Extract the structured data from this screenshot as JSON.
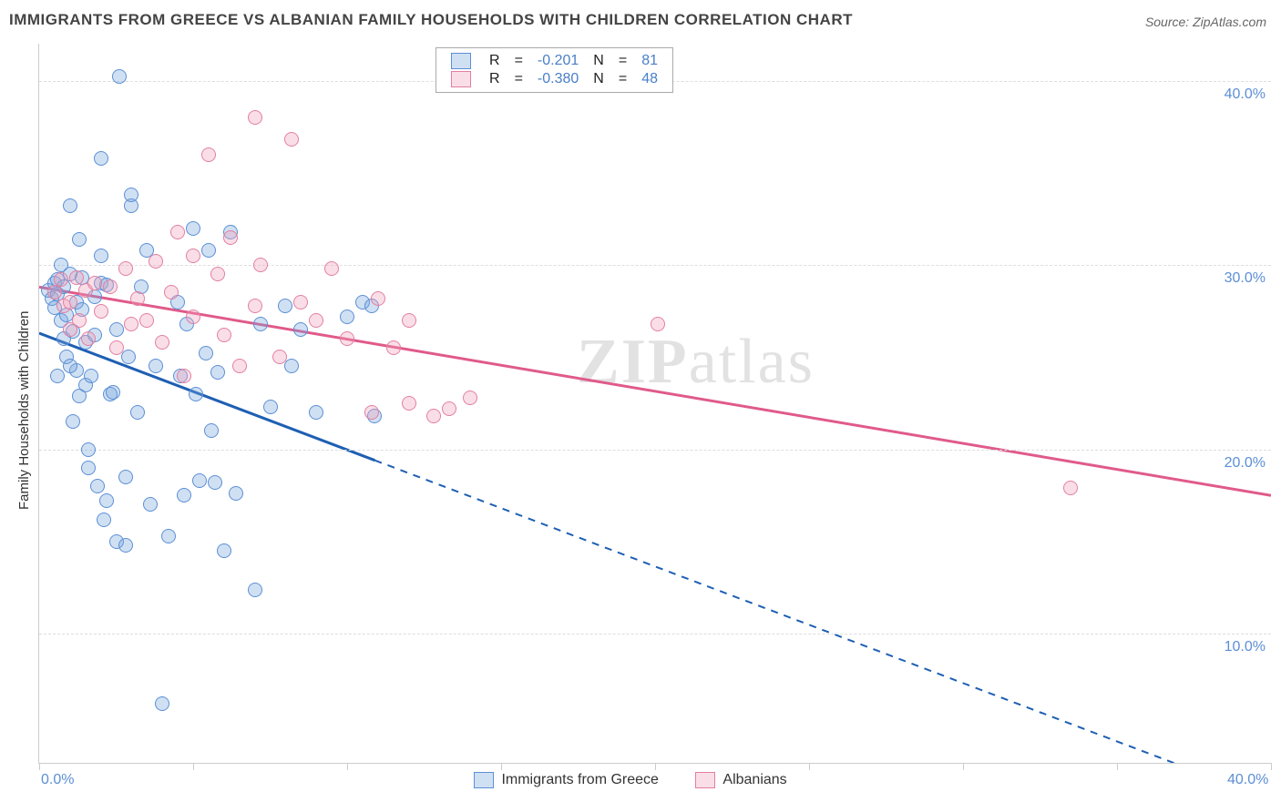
{
  "title": "IMMIGRANTS FROM GREECE VS ALBANIAN FAMILY HOUSEHOLDS WITH CHILDREN CORRELATION CHART",
  "source_prefix": "Source: ",
  "source_name": "ZipAtlas.com",
  "ylabel": "Family Households with Children",
  "watermark_a": "ZIP",
  "watermark_b": "atlas",
  "chart": {
    "type": "scatter",
    "background_color": "#ffffff",
    "grid_color": "#dddddd",
    "axis_color": "#cccccc",
    "tick_label_color": "#5b8fd6",
    "xlim": [
      0,
      40
    ],
    "ylim": [
      3,
      42
    ],
    "x_ticks": [
      0,
      5,
      10,
      15,
      20,
      25,
      30,
      35,
      40
    ],
    "y_gridlines": [
      10,
      20,
      30,
      40
    ],
    "x_tick_labels": {
      "0": "0.0%",
      "40": "40.0%"
    },
    "y_tick_labels": {
      "10": "10.0%",
      "20": "20.0%",
      "30": "30.0%",
      "40": "40.0%"
    },
    "marker_radius": 8,
    "marker_border_width": 1.5,
    "series": [
      {
        "key": "greece",
        "label": "Immigrants from Greece",
        "fill_color": "rgba(120,165,220,0.35)",
        "border_color": "#5b8fd6",
        "trend_color": "#1e5fb3",
        "trend": {
          "y_at_x0": 26.3,
          "y_at_xmax": 1.0,
          "solid_until_x": 10.9
        },
        "R": "-0.201",
        "N": "81",
        "points": [
          [
            0.3,
            28.6
          ],
          [
            0.4,
            28.2
          ],
          [
            0.5,
            29.0
          ],
          [
            0.5,
            27.7
          ],
          [
            0.6,
            28.4
          ],
          [
            0.6,
            29.2
          ],
          [
            0.7,
            27.0
          ],
          [
            0.7,
            30.0
          ],
          [
            0.8,
            26.0
          ],
          [
            0.8,
            28.8
          ],
          [
            0.9,
            27.3
          ],
          [
            0.9,
            25.0
          ],
          [
            1.0,
            29.5
          ],
          [
            1.0,
            33.2
          ],
          [
            1.1,
            26.4
          ],
          [
            1.2,
            24.3
          ],
          [
            1.2,
            28.0
          ],
          [
            1.3,
            31.4
          ],
          [
            1.3,
            22.9
          ],
          [
            1.4,
            27.6
          ],
          [
            1.5,
            23.5
          ],
          [
            1.5,
            25.8
          ],
          [
            1.6,
            20.0
          ],
          [
            1.6,
            19.0
          ],
          [
            1.7,
            24.0
          ],
          [
            1.8,
            28.3
          ],
          [
            1.8,
            26.2
          ],
          [
            1.9,
            18.0
          ],
          [
            2.0,
            35.8
          ],
          [
            2.0,
            30.5
          ],
          [
            2.1,
            16.2
          ],
          [
            2.2,
            17.2
          ],
          [
            2.3,
            23.0
          ],
          [
            2.4,
            23.1
          ],
          [
            2.5,
            26.5
          ],
          [
            2.5,
            15.0
          ],
          [
            2.6,
            40.2
          ],
          [
            2.8,
            14.8
          ],
          [
            2.8,
            18.5
          ],
          [
            2.9,
            25.0
          ],
          [
            3.0,
            33.2
          ],
          [
            3.0,
            33.8
          ],
          [
            3.2,
            22.0
          ],
          [
            3.5,
            30.8
          ],
          [
            3.6,
            17.0
          ],
          [
            3.8,
            24.5
          ],
          [
            4.0,
            6.2
          ],
          [
            4.2,
            15.3
          ],
          [
            4.5,
            28.0
          ],
          [
            4.6,
            24.0
          ],
          [
            4.7,
            17.5
          ],
          [
            4.8,
            26.8
          ],
          [
            5.0,
            32.0
          ],
          [
            5.1,
            23.0
          ],
          [
            5.2,
            18.3
          ],
          [
            5.4,
            25.2
          ],
          [
            5.5,
            30.8
          ],
          [
            5.6,
            21.0
          ],
          [
            5.7,
            18.2
          ],
          [
            5.8,
            24.2
          ],
          [
            6.0,
            14.5
          ],
          [
            6.2,
            31.8
          ],
          [
            6.4,
            17.6
          ],
          [
            7.0,
            12.4
          ],
          [
            7.2,
            26.8
          ],
          [
            7.5,
            22.3
          ],
          [
            8.0,
            27.8
          ],
          [
            8.2,
            24.5
          ],
          [
            8.5,
            26.5
          ],
          [
            9.0,
            22.0
          ],
          [
            10.0,
            27.2
          ],
          [
            10.5,
            28.0
          ],
          [
            10.8,
            27.8
          ],
          [
            10.9,
            21.8
          ],
          [
            2.0,
            29.0
          ],
          [
            1.0,
            24.5
          ],
          [
            1.4,
            29.3
          ],
          [
            1.1,
            21.5
          ],
          [
            2.2,
            28.9
          ],
          [
            0.6,
            24.0
          ],
          [
            3.3,
            28.8
          ]
        ]
      },
      {
        "key": "albanians",
        "label": "Albanians",
        "fill_color": "rgba(240,160,185,0.35)",
        "border_color": "#e37fa0",
        "trend_color": "#e05a8a",
        "trend": {
          "y_at_x0": 28.8,
          "y_at_xmax": 17.5,
          "solid_until_x": 40
        },
        "R": "-0.380",
        "N": "48",
        "points": [
          [
            0.5,
            28.5
          ],
          [
            0.7,
            29.2
          ],
          [
            0.8,
            27.8
          ],
          [
            1.0,
            28.0
          ],
          [
            1.0,
            26.5
          ],
          [
            1.2,
            29.3
          ],
          [
            1.3,
            27.0
          ],
          [
            1.5,
            28.6
          ],
          [
            1.6,
            26.0
          ],
          [
            1.8,
            29.0
          ],
          [
            2.0,
            27.5
          ],
          [
            2.3,
            28.8
          ],
          [
            2.5,
            25.5
          ],
          [
            2.8,
            29.8
          ],
          [
            3.0,
            26.8
          ],
          [
            3.2,
            28.2
          ],
          [
            3.5,
            27.0
          ],
          [
            3.8,
            30.2
          ],
          [
            4.0,
            25.8
          ],
          [
            4.3,
            28.5
          ],
          [
            4.5,
            31.8
          ],
          [
            4.7,
            24.0
          ],
          [
            5.0,
            27.2
          ],
          [
            5.0,
            30.5
          ],
          [
            5.5,
            36.0
          ],
          [
            5.8,
            29.5
          ],
          [
            6.0,
            26.2
          ],
          [
            6.2,
            31.5
          ],
          [
            6.5,
            24.5
          ],
          [
            7.0,
            38.0
          ],
          [
            7.0,
            27.8
          ],
          [
            7.2,
            30.0
          ],
          [
            7.8,
            25.0
          ],
          [
            8.2,
            36.8
          ],
          [
            8.5,
            28.0
          ],
          [
            9.0,
            27.0
          ],
          [
            9.5,
            29.8
          ],
          [
            10.0,
            26.0
          ],
          [
            10.8,
            22.0
          ],
          [
            11.0,
            28.2
          ],
          [
            11.5,
            25.5
          ],
          [
            12.0,
            27.0
          ],
          [
            12.0,
            22.5
          ],
          [
            12.8,
            21.8
          ],
          [
            13.3,
            22.2
          ],
          [
            14.0,
            22.8
          ],
          [
            20.1,
            26.8
          ],
          [
            33.5,
            17.9
          ]
        ]
      }
    ]
  },
  "legend_top": {
    "R_label": "R",
    "N_label": "N",
    "eq": "="
  },
  "colors": {
    "title": "#444444",
    "source": "#666666",
    "text": "#333333",
    "value_blue": "#4a7fc9",
    "watermark": "#cccccc"
  }
}
